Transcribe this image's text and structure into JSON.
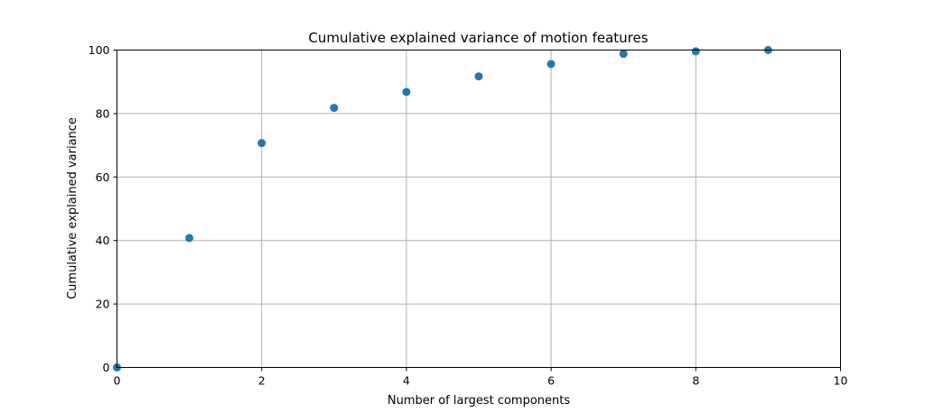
{
  "chart_data": {
    "type": "scatter",
    "title": "Cumulative explained variance of motion features",
    "xlabel": "Number of largest components",
    "ylabel": "Cumulative explained variance",
    "xlim": [
      0,
      10
    ],
    "ylim": [
      0,
      100
    ],
    "x_ticks": [
      0,
      2,
      4,
      6,
      8,
      10
    ],
    "y_ticks": [
      0,
      20,
      40,
      60,
      80,
      100
    ],
    "grid": true,
    "marker_color": "#1f77b4",
    "series": [
      {
        "x": [
          0,
          1,
          2,
          3,
          4,
          5,
          6,
          7,
          8,
          9
        ],
        "values": [
          0,
          40.8,
          70.7,
          81.8,
          86.8,
          91.7,
          95.6,
          98.8,
          99.6,
          100
        ]
      }
    ]
  }
}
